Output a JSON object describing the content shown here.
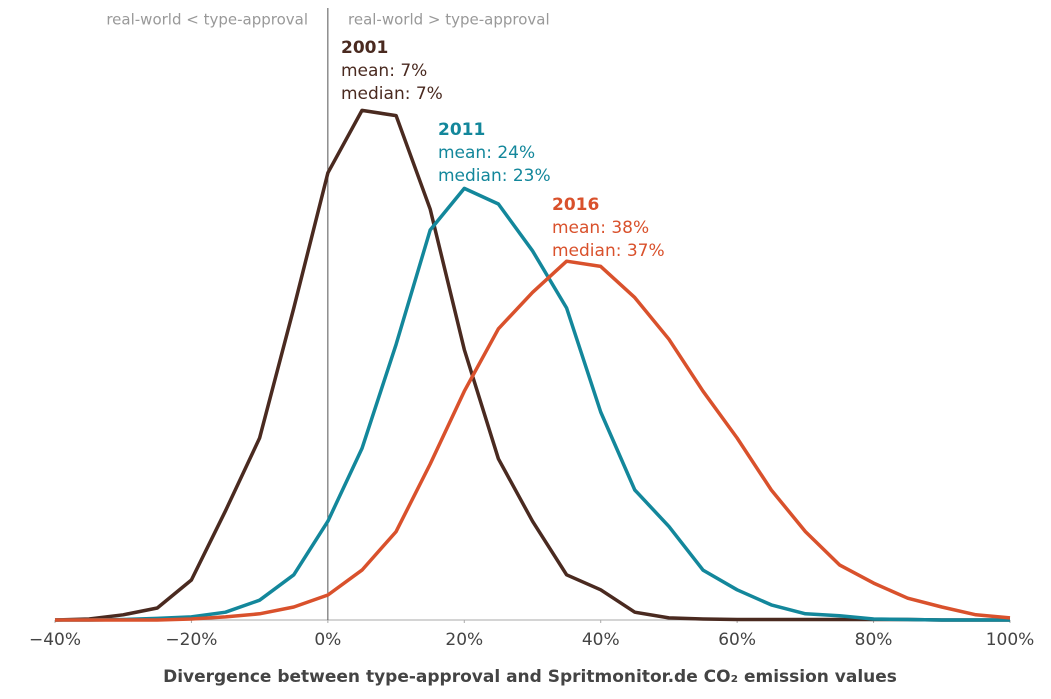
{
  "chart_data": {
    "type": "line",
    "region_labels": [
      "real-world < type-approval",
      "real-world > type-approval"
    ],
    "xlabel": "Divergence between type-approval and Spritmonitor.de CO₂ emission values",
    "x": [
      -40,
      -35,
      -30,
      -25,
      -20,
      -15,
      -10,
      -5,
      0,
      5,
      10,
      15,
      20,
      25,
      30,
      35,
      40,
      45,
      50,
      55,
      60,
      65,
      70,
      75,
      80,
      85,
      90,
      95,
      100
    ],
    "xlim": [
      -40,
      100
    ],
    "xticks": [
      {
        "value": -40,
        "label": "−40%"
      },
      {
        "value": -20,
        "label": "−20%"
      },
      {
        "value": 0,
        "label": "0%"
      },
      {
        "value": 20,
        "label": "20%"
      },
      {
        "value": 40,
        "label": "40%"
      },
      {
        "value": 60,
        "label": "60%"
      },
      {
        "value": 80,
        "label": "80%"
      },
      {
        "value": 100,
        "label": "100%"
      }
    ],
    "ylim": [
      0,
      100
    ],
    "series": [
      {
        "name": "2001",
        "color": "#4a2a20",
        "annotation": [
          "mean: 7%",
          "median: 7%"
        ],
        "values": [
          0,
          0.2,
          1,
          2.3,
          7.7,
          21,
          35,
          60,
          86,
          98,
          97,
          79,
          52,
          31,
          19,
          8.7,
          5.8,
          1.5,
          0.4,
          0.2,
          0.1,
          0.1,
          0.1,
          0.1,
          0.1,
          0.1,
          0,
          0,
          0
        ]
      },
      {
        "name": "2011",
        "color": "#13879b",
        "annotation": [
          "mean: 24%",
          "median: 23%"
        ],
        "values": [
          0,
          0,
          0.1,
          0.3,
          0.6,
          1.5,
          3.8,
          8.7,
          19,
          33,
          53,
          75,
          83,
          80,
          71,
          60,
          40,
          25,
          18,
          9.6,
          5.8,
          2.9,
          1.2,
          0.8,
          0.2,
          0.1,
          0,
          0,
          0
        ]
      },
      {
        "name": "2016",
        "color": "#d9512c",
        "annotation": [
          "mean: 38%",
          "median: 37%"
        ],
        "values": [
          0,
          0,
          0,
          0,
          0.2,
          0.6,
          1.2,
          2.5,
          4.8,
          9.6,
          17,
          30,
          44,
          56,
          63,
          69,
          68,
          62,
          54,
          44,
          35,
          25,
          17,
          10.6,
          7.1,
          4.2,
          2.5,
          1,
          0.4
        ]
      }
    ]
  }
}
